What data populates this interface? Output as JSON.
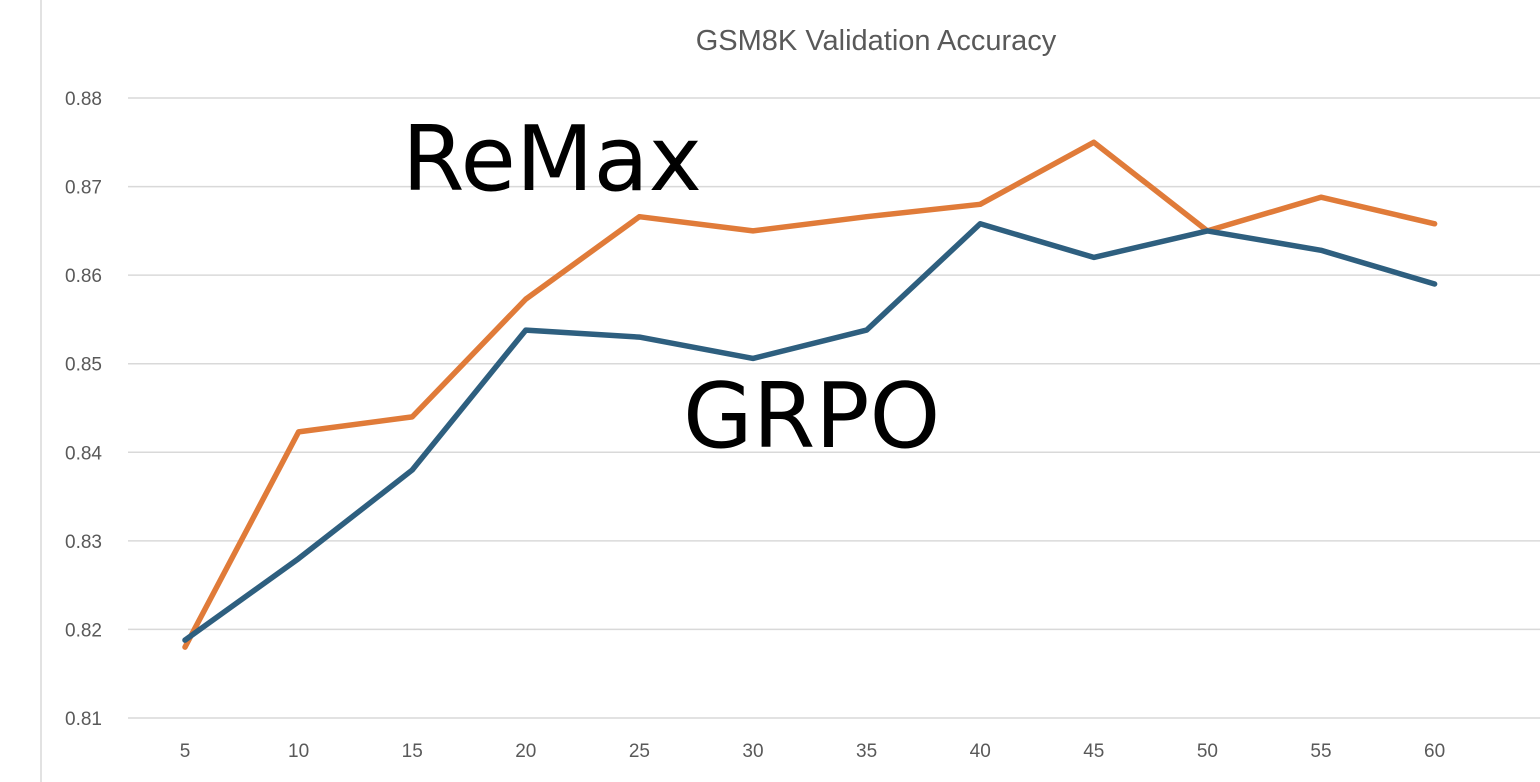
{
  "chart_data": {
    "type": "line",
    "title": "GSM8K Validation Accuracy",
    "xlabel": "",
    "ylabel": "",
    "x": [
      5,
      10,
      15,
      20,
      25,
      30,
      35,
      40,
      45,
      50,
      55,
      60
    ],
    "x_tick_labels": [
      "5",
      "10",
      "15",
      "20",
      "25",
      "30",
      "35",
      "40",
      "45",
      "50",
      "55",
      "60"
    ],
    "ylim": [
      0.81,
      0.88
    ],
    "y_ticks": [
      0.81,
      0.82,
      0.83,
      0.84,
      0.85,
      0.86,
      0.87,
      0.88
    ],
    "y_tick_labels": [
      "0.81",
      "0.82",
      "0.83",
      "0.84",
      "0.85",
      "0.86",
      "0.87",
      "0.88"
    ],
    "grid": true,
    "legend": "none",
    "series": [
      {
        "name": "ReMax",
        "color": "#e07b39",
        "values": [
          0.818,
          0.8423,
          0.844,
          0.8573,
          0.8666,
          0.865,
          0.8666,
          0.868,
          0.875,
          0.865,
          0.8688,
          0.8658
        ]
      },
      {
        "name": "GRPO",
        "color": "#2e5f7f",
        "values": [
          0.8188,
          0.828,
          0.838,
          0.8538,
          0.853,
          0.8506,
          0.8538,
          0.8658,
          0.862,
          0.865,
          0.8628,
          0.859
        ]
      }
    ],
    "annotations": [
      {
        "text": "ReMax",
        "series": "ReMax"
      },
      {
        "text": "GRPO",
        "series": "GRPO"
      }
    ]
  }
}
